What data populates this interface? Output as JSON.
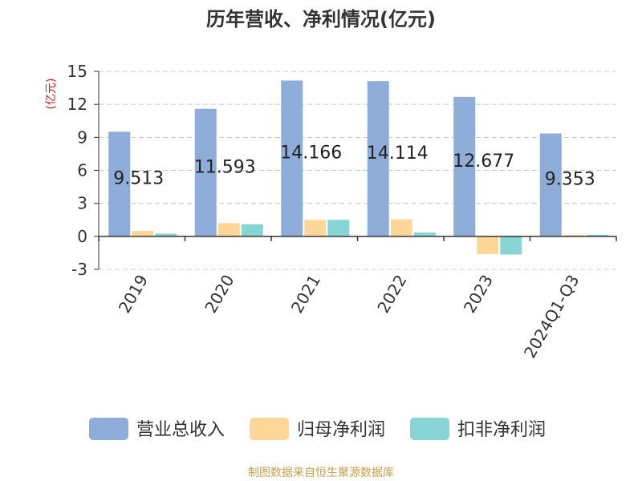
{
  "chart_data": {
    "type": "bar",
    "title": "历年营收、净利情况(亿元)",
    "ylabel": "(亿元)",
    "ylim": [
      -3,
      15
    ],
    "yticks": [
      -3,
      0,
      3,
      6,
      9,
      12,
      15
    ],
    "grid": true,
    "legend_position": "bottom",
    "categories": [
      "2019",
      "2020",
      "2021",
      "2022",
      "2023",
      "2024Q1-Q3"
    ],
    "series": [
      {
        "name": "营业总收入",
        "color": "#8eadd9",
        "values": [
          9.513,
          11.593,
          14.166,
          14.114,
          12.677,
          9.353
        ],
        "labels": [
          "9.513",
          "11.593",
          "14.166",
          "14.114",
          "12.677",
          "9.353"
        ]
      },
      {
        "name": "归母净利润",
        "color": "#fdd698",
        "values": [
          0.5,
          1.2,
          1.5,
          1.55,
          -1.6,
          0.15
        ]
      },
      {
        "name": "扣非净利润",
        "color": "#87d5d5",
        "values": [
          0.25,
          1.1,
          1.5,
          0.35,
          -1.65,
          0.15
        ]
      }
    ]
  },
  "source_text": "制图数据来自恒生聚源数据库",
  "colors": {
    "title": "#333333",
    "ylabel": "#e0151c",
    "axis": "#333333",
    "grid": "#c8c8c8",
    "source": "#c8a04a"
  }
}
